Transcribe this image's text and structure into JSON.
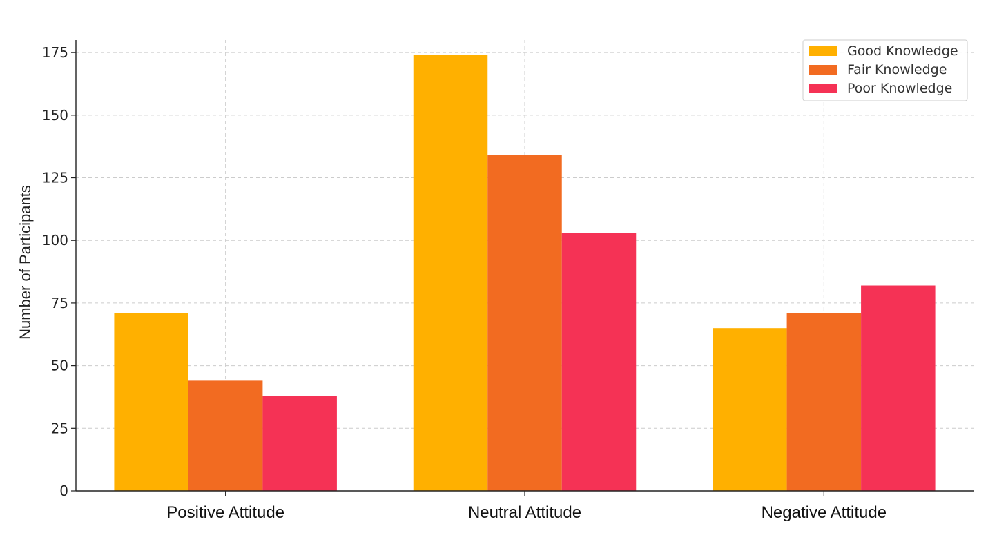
{
  "chart_data": {
    "type": "bar",
    "title": "",
    "xlabel": "",
    "ylabel": "Number of Participants",
    "categories": [
      "Positive Attitude",
      "Neutral Attitude",
      "Negative Attitude"
    ],
    "series": [
      {
        "name": "Good Knowledge",
        "color": "#FFB000",
        "values": [
          71,
          174,
          65
        ]
      },
      {
        "name": "Fair Knowledge",
        "color": "#F26B21",
        "values": [
          44,
          134,
          71
        ]
      },
      {
        "name": "Poor Knowledge",
        "color": "#F53255",
        "values": [
          38,
          103,
          82
        ]
      }
    ],
    "ylim": [
      0,
      180
    ],
    "yticks": [
      0,
      25,
      50,
      75,
      100,
      125,
      150,
      175
    ],
    "grid": true,
    "legend_position": "top-right"
  }
}
